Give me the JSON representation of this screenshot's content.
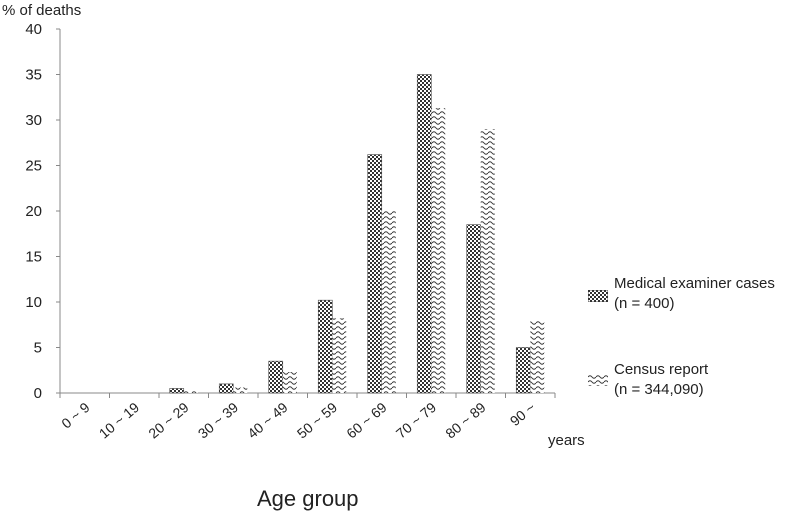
{
  "chart_data": {
    "type": "bar",
    "ylabel": "% of deaths",
    "xlabel": "Age group",
    "x_unit": "years",
    "ylim": [
      0,
      40
    ],
    "yticks": [
      0,
      5,
      10,
      15,
      20,
      25,
      30,
      35,
      40
    ],
    "categories": [
      "0 ~ 9",
      "10 ~ 19",
      "20 ~ 29",
      "30 ~ 39",
      "40 ~ 49",
      "50 ~ 59",
      "60 ~ 69",
      "70 ~ 79",
      "80 ~ 89",
      "90 ~"
    ],
    "series": [
      {
        "name": "Medical examiner cases",
        "n_label": "(n = 400)",
        "pattern": "checker",
        "values": [
          0,
          0,
          0.5,
          1.0,
          3.5,
          10.2,
          26.2,
          35.0,
          18.5,
          5.0
        ]
      },
      {
        "name": "Census report",
        "n_label": "(n = 344,090)",
        "pattern": "wave",
        "values": [
          0,
          0,
          0.2,
          0.6,
          2.3,
          8.2,
          20.0,
          31.3,
          29.0,
          8.0
        ]
      }
    ],
    "grid": false,
    "legend_position": "right"
  }
}
